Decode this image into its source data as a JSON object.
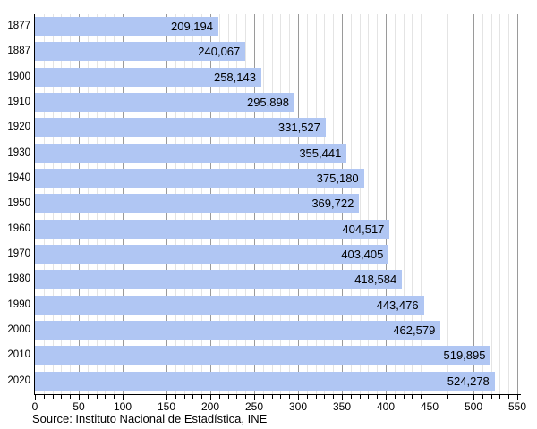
{
  "chart_data": {
    "type": "bar",
    "orientation": "horizontal",
    "title": "",
    "xlabel": "",
    "ylabel": "",
    "categories": [
      "1877",
      "1887",
      "1900",
      "1910",
      "1920",
      "1930",
      "1940",
      "1950",
      "1960",
      "1970",
      "1980",
      "1990",
      "2000",
      "2010",
      "2020"
    ],
    "values": [
      209194,
      240067,
      258143,
      295898,
      331527,
      355441,
      375180,
      369722,
      404517,
      403405,
      418584,
      443476,
      462579,
      519895,
      524278
    ],
    "value_labels": [
      "209,194",
      "240,067",
      "258,143",
      "295,898",
      "331,527",
      "355,441",
      "375,180",
      "369,722",
      "404,517",
      "403,405",
      "418,584",
      "443,476",
      "462,579",
      "519,895",
      "524,278"
    ],
    "axis_unit": "thousands",
    "xlim": [
      0,
      550
    ],
    "x_ticks": [
      0,
      50,
      100,
      150,
      200,
      250,
      300,
      350,
      400,
      450,
      500,
      550
    ],
    "x_minor_step": 10,
    "grid": "vertical: minor every 10 (light gray), major every 50 (dark gray)",
    "legend": "none",
    "bar_color": "#b0c6f3",
    "minor_grid_color": "#e4e4e4",
    "major_grid_color": "#9a9a9a",
    "axis_color": "#000000",
    "source": "Source: Instituto Nacional de Estadística, INE"
  }
}
